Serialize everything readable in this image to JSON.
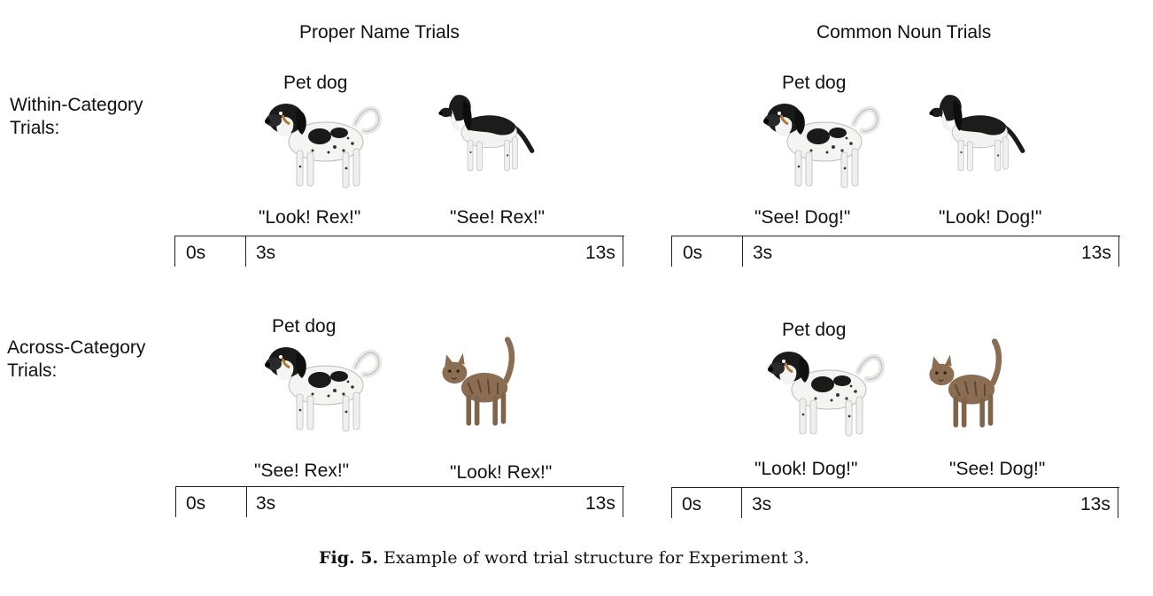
{
  "columns": {
    "proper": "Proper Name Trials",
    "common": "Common Noun Trials"
  },
  "rows": {
    "within": "Within-Category Trials:",
    "across": "Across-Category Trials:"
  },
  "pet_label": "Pet dog",
  "panels": {
    "within_proper": {
      "first": "\"Look! Rex!\"",
      "second": "\"See! Rex!\""
    },
    "within_common": {
      "first": "\"See! Dog!\"",
      "second": "\"Look! Dog!\""
    },
    "across_proper": {
      "first": "\"See! Rex!\"",
      "second": "\"Look! Rex!\""
    },
    "across_common": {
      "first": "\"Look! Dog!\"",
      "second": "\"See! Dog!\""
    }
  },
  "timeline": {
    "t0": "0s",
    "t1": "3s",
    "t2": "13s"
  },
  "caption": {
    "label": "Fig. 5.",
    "text": "Example of word trial structure for Experiment 3."
  },
  "colors": {
    "dog_black": "#1a1a1a",
    "dog_white": "#f4f4f2",
    "cat_brown": "#8a6d52"
  }
}
